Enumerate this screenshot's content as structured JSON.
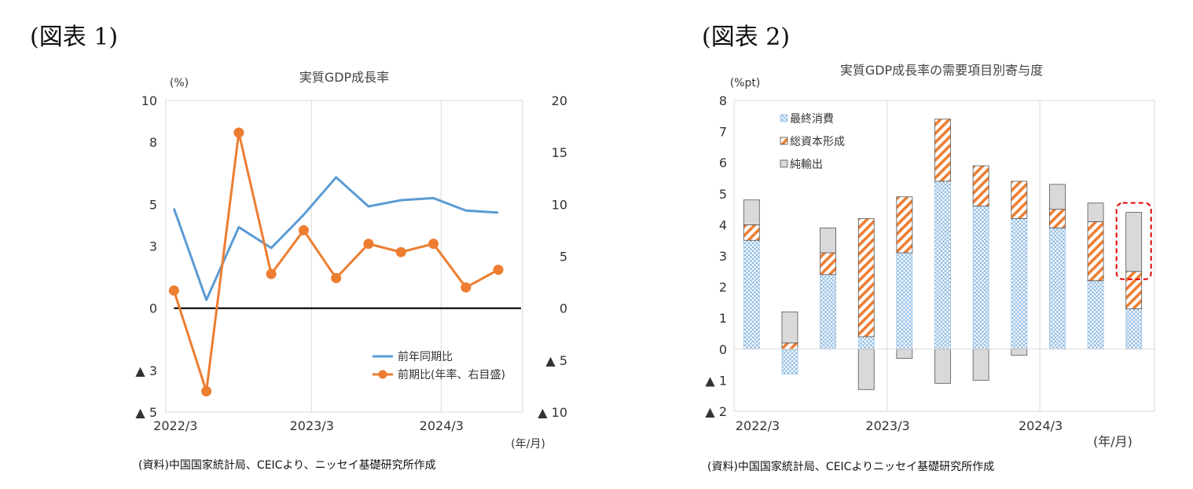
{
  "fig1": {
    "label": "(図表 1)",
    "source": "(資料)中国国家統計局、CEICより、ニッセイ基礎研究所作成"
  },
  "fig2": {
    "label": "(図表 2)",
    "source": "(資料)中国国家統計局、CEICよりニッセイ基礎研究所作成"
  },
  "chart_data": [
    {
      "type": "line",
      "title": "実質GDP成長率",
      "ylabel": "(%)",
      "xlabel": "(年/月)",
      "x_tick_labels": [
        "2022/3",
        "2023/3",
        "2024/3"
      ],
      "x_tick_positions": [
        0,
        4,
        8
      ],
      "y_left_range": [
        -5,
        10
      ],
      "y_left_ticks": [
        10,
        8,
        5,
        3,
        0,
        -3,
        -5
      ],
      "y_left_tick_labels": [
        "10",
        "8",
        "5",
        "3",
        "0",
        "▲ 3",
        "▲ 5"
      ],
      "y_right_range": [
        -10,
        20
      ],
      "y_right_ticks": [
        20,
        15,
        10,
        5,
        0,
        -5,
        -10
      ],
      "y_right_tick_labels": [
        "20",
        "15",
        "10",
        "5",
        "0",
        "▲ 5",
        "▲ 10"
      ],
      "zero_line": true,
      "legend_position": "bottom-right",
      "categories": [
        "2022/3",
        "2022/6",
        "2022/9",
        "2022/12",
        "2023/3",
        "2023/6",
        "2023/9",
        "2023/12",
        "2024/3",
        "2024/6",
        "2024/9"
      ],
      "series": [
        {
          "name": "前年同期比",
          "axis": "left",
          "color": "#5b9bd5",
          "marker": false,
          "values": [
            4.8,
            0.4,
            3.9,
            2.9,
            4.5,
            6.3,
            4.9,
            5.2,
            5.3,
            4.7,
            4.6
          ]
        },
        {
          "name": "前期比(年率、右目盛)",
          "axis": "right",
          "color": "#ed7d31",
          "marker": true,
          "values": [
            1.7,
            -8.0,
            16.9,
            3.3,
            7.5,
            2.9,
            6.2,
            5.4,
            6.2,
            2.0,
            3.7
          ]
        }
      ]
    },
    {
      "type": "bar",
      "stacked": true,
      "title": "実質GDP成長率の需要項目別寄与度",
      "ylabel": "(%pt)",
      "xlabel": "(年/月)",
      "x_tick_labels": [
        "2022/3",
        "2023/3",
        "2024/3"
      ],
      "x_tick_positions": [
        0,
        4,
        8
      ],
      "ylim": [
        -2,
        8
      ],
      "y_ticks": [
        8,
        7,
        6,
        5,
        4,
        3,
        2,
        1,
        0,
        -1,
        -2
      ],
      "y_tick_labels": [
        "8",
        "7",
        "6",
        "5",
        "4",
        "3",
        "2",
        "1",
        "0",
        "▲ 1",
        "▲ 2"
      ],
      "legend_position": "top-left",
      "highlight_index": 10,
      "categories": [
        "2022/3",
        "2022/6",
        "2022/9",
        "2022/12",
        "2023/3",
        "2023/6",
        "2023/9",
        "2023/12",
        "2024/3",
        "2024/6",
        "2024/9"
      ],
      "series": [
        {
          "name": "最終消費",
          "pattern": "crosshatch-blue",
          "values": [
            3.5,
            -0.8,
            2.4,
            0.4,
            3.1,
            5.4,
            4.6,
            4.2,
            3.9,
            2.2,
            1.3
          ]
        },
        {
          "name": "総資本形成",
          "pattern": "diagonal-orange",
          "values": [
            0.5,
            0.2,
            0.7,
            3.8,
            1.8,
            2.0,
            1.3,
            1.2,
            0.6,
            1.9,
            1.2
          ]
        },
        {
          "name": "純輸出",
          "pattern": "solid-gray",
          "values": [
            0.8,
            1.0,
            0.8,
            -1.3,
            -0.3,
            -1.1,
            -1.0,
            -0.2,
            0.8,
            0.6,
            1.9
          ]
        }
      ]
    }
  ]
}
